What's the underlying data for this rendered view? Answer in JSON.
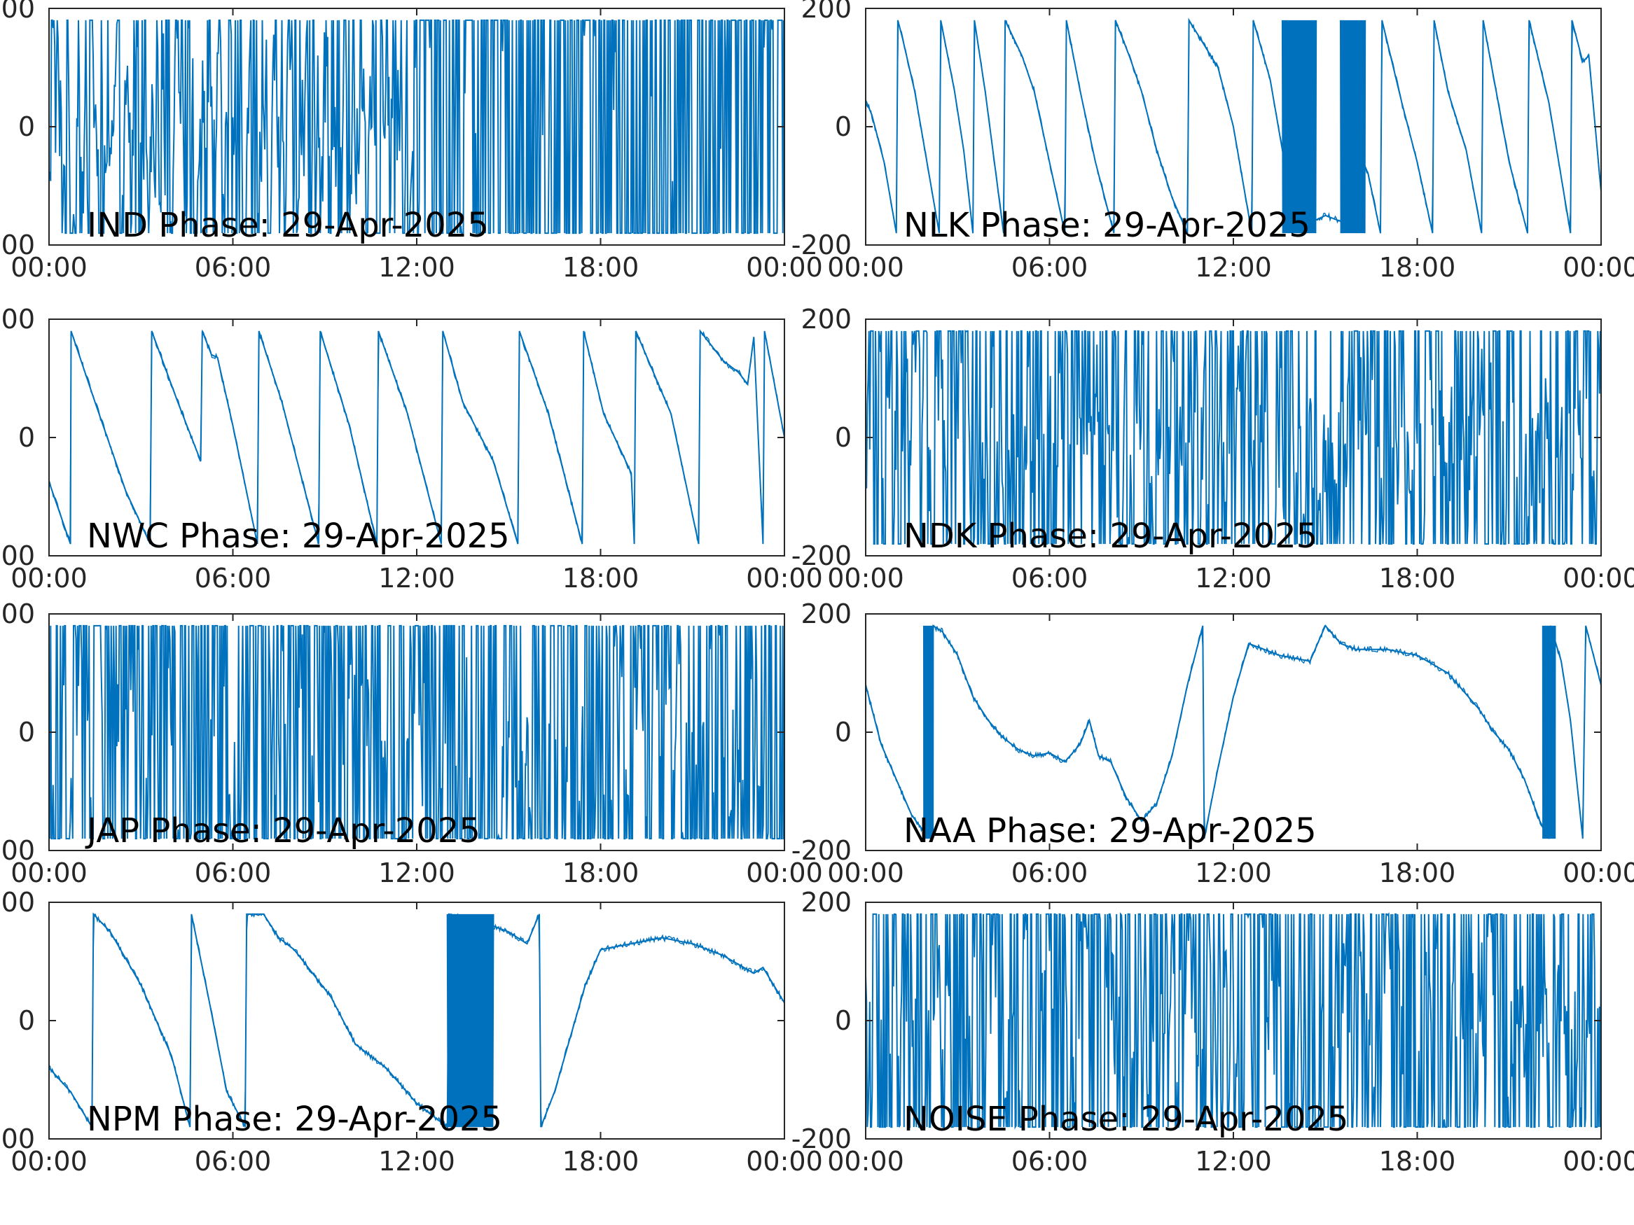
{
  "figure": {
    "color": "#0072BD",
    "xtick_labels": [
      "00:00",
      "06:00",
      "12:00",
      "18:00",
      "00:00"
    ],
    "xlim_hours": [
      0,
      24
    ],
    "xtick_hours": [
      0,
      6,
      12,
      18,
      24
    ],
    "ylim": [
      -200,
      200
    ],
    "ytick_values": [
      -200,
      0,
      200
    ]
  },
  "chart_data": [
    {
      "type": "line",
      "title": "IND Phase: 29-Apr-2025",
      "kind": "noise",
      "density_first": 0.35,
      "density_second": 0.95,
      "split_hour": 12,
      "amp": 180,
      "xlabel": "",
      "ylabel": "",
      "xlim": [
        "00:00",
        "24:00"
      ],
      "ylim": [
        -200,
        200
      ],
      "grid": false
    },
    {
      "type": "line",
      "title": "NLK Phase: 29-Apr-2025",
      "kind": "sawtooth",
      "points": [
        [
          0,
          45
        ],
        [
          0.2,
          20
        ],
        [
          0.6,
          -60
        ],
        [
          1.0,
          -180
        ],
        [
          1.05,
          180
        ],
        [
          1.2,
          150
        ],
        [
          1.6,
          60
        ],
        [
          2.0,
          -60
        ],
        [
          2.4,
          -180
        ],
        [
          2.45,
          180
        ],
        [
          2.9,
          60
        ],
        [
          3.2,
          -40
        ],
        [
          3.5,
          -180
        ],
        [
          3.55,
          180
        ],
        [
          3.9,
          60
        ],
        [
          4.2,
          -60
        ],
        [
          4.5,
          -180
        ],
        [
          4.55,
          180
        ],
        [
          5.1,
          120
        ],
        [
          5.5,
          60
        ],
        [
          6.0,
          -60
        ],
        [
          6.5,
          -180
        ],
        [
          6.55,
          180
        ],
        [
          7.0,
          60
        ],
        [
          7.5,
          -60
        ],
        [
          8.0,
          -160
        ],
        [
          8.1,
          -180
        ],
        [
          8.15,
          180
        ],
        [
          8.6,
          120
        ],
        [
          9.0,
          60
        ],
        [
          9.5,
          -40
        ],
        [
          10.0,
          -120
        ],
        [
          10.5,
          -180
        ],
        [
          10.55,
          180
        ],
        [
          11.5,
          100
        ],
        [
          12.0,
          0
        ],
        [
          12.6,
          -180
        ],
        [
          12.65,
          180
        ],
        [
          13.2,
          80
        ],
        [
          13.5,
          -10
        ],
        [
          13.8,
          -100
        ],
        [
          14.2,
          -140
        ],
        [
          14.6,
          -160
        ],
        [
          15.0,
          -150
        ],
        [
          15.5,
          -160
        ],
        [
          16.0,
          -30
        ],
        [
          16.4,
          -80
        ],
        [
          16.8,
          -180
        ],
        [
          16.85,
          180
        ],
        [
          17.5,
          40
        ],
        [
          18.0,
          -60
        ],
        [
          18.5,
          -180
        ],
        [
          18.55,
          180
        ],
        [
          19.0,
          60
        ],
        [
          19.6,
          -40
        ],
        [
          20.1,
          -180
        ],
        [
          20.15,
          180
        ],
        [
          21.0,
          -60
        ],
        [
          21.6,
          -180
        ],
        [
          21.65,
          180
        ],
        [
          22.3,
          40
        ],
        [
          23.0,
          -180
        ],
        [
          23.05,
          180
        ],
        [
          23.4,
          110
        ],
        [
          23.6,
          120
        ],
        [
          24,
          -110
        ]
      ],
      "burst": [
        [
          13.6,
          14.7
        ],
        [
          15.5,
          16.3
        ]
      ],
      "xlabel": "",
      "ylabel": "",
      "ylim": [
        -200,
        200
      ],
      "grid": false
    },
    {
      "type": "line",
      "title": "NWC Phase: 29-Apr-2025",
      "kind": "sawtooth",
      "points": [
        [
          0,
          -75
        ],
        [
          0.7,
          -180
        ],
        [
          0.72,
          180
        ],
        [
          1.5,
          60
        ],
        [
          2.5,
          -90
        ],
        [
          3.3,
          -180
        ],
        [
          3.35,
          180
        ],
        [
          4.2,
          60
        ],
        [
          4.95,
          -40
        ],
        [
          5.0,
          180
        ],
        [
          5.3,
          140
        ],
        [
          5.5,
          135
        ],
        [
          6.0,
          20
        ],
        [
          6.8,
          -180
        ],
        [
          6.85,
          180
        ],
        [
          7.6,
          60
        ],
        [
          8.0,
          -20
        ],
        [
          8.8,
          -180
        ],
        [
          8.85,
          180
        ],
        [
          9.8,
          20
        ],
        [
          10.7,
          -180
        ],
        [
          10.75,
          180
        ],
        [
          11.7,
          40
        ],
        [
          12.8,
          -180
        ],
        [
          12.85,
          180
        ],
        [
          13.5,
          60
        ],
        [
          14.5,
          -40
        ],
        [
          15.3,
          -180
        ],
        [
          15.35,
          180
        ],
        [
          16.3,
          40
        ],
        [
          17.4,
          -180
        ],
        [
          17.45,
          180
        ],
        [
          18.1,
          40
        ],
        [
          19.0,
          -60
        ],
        [
          19.1,
          -180
        ],
        [
          19.15,
          180
        ],
        [
          20.3,
          40
        ],
        [
          21.2,
          -180
        ],
        [
          21.25,
          180
        ],
        [
          22.0,
          130
        ],
        [
          22.5,
          110
        ],
        [
          22.8,
          90
        ],
        [
          23.0,
          170
        ],
        [
          23.3,
          -180
        ],
        [
          23.35,
          180
        ],
        [
          24,
          0
        ]
      ],
      "xlabel": "",
      "ylabel": "",
      "ylim": [
        -200,
        200
      ],
      "grid": false
    },
    {
      "type": "line",
      "title": "NDK Phase: 29-Apr-2025",
      "kind": "noise",
      "density_first": 0.55,
      "density_second": 0.55,
      "split_hour": 12,
      "amp": 180,
      "xlabel": "",
      "ylabel": "",
      "ylim": [
        -200,
        200
      ],
      "grid": false
    },
    {
      "type": "line",
      "title": "JAP Phase: 29-Apr-2025",
      "kind": "noise",
      "density_first": 0.7,
      "density_second": 0.7,
      "split_hour": 12,
      "amp": 180,
      "xlabel": "",
      "ylabel": "",
      "ylim": [
        -200,
        200
      ],
      "grid": false
    },
    {
      "type": "line",
      "title": "NAA Phase: 29-Apr-2025",
      "kind": "trend",
      "points": [
        [
          0,
          80
        ],
        [
          0.5,
          -20
        ],
        [
          1.0,
          -80
        ],
        [
          1.5,
          -140
        ],
        [
          2.0,
          -175
        ],
        [
          2.2,
          180
        ],
        [
          2.5,
          170
        ],
        [
          3.0,
          130
        ],
        [
          3.5,
          60
        ],
        [
          4.0,
          20
        ],
        [
          4.5,
          -10
        ],
        [
          5.0,
          -30
        ],
        [
          5.5,
          -40
        ],
        [
          6.0,
          -35
        ],
        [
          6.5,
          -50
        ],
        [
          7.0,
          -20
        ],
        [
          7.3,
          20
        ],
        [
          7.6,
          -40
        ],
        [
          8.0,
          -50
        ],
        [
          8.5,
          -110
        ],
        [
          9.0,
          -150
        ],
        [
          9.5,
          -120
        ],
        [
          10.0,
          -40
        ],
        [
          10.5,
          80
        ],
        [
          11.0,
          180
        ],
        [
          11.05,
          -180
        ],
        [
          11.5,
          -60
        ],
        [
          12.0,
          60
        ],
        [
          12.5,
          150
        ],
        [
          13.0,
          140
        ],
        [
          13.5,
          130
        ],
        [
          14.0,
          125
        ],
        [
          14.5,
          120
        ],
        [
          15.0,
          180
        ],
        [
          15.5,
          150
        ],
        [
          16.0,
          140
        ],
        [
          17.0,
          140
        ],
        [
          18.0,
          130
        ],
        [
          19.0,
          100
        ],
        [
          20.0,
          40
        ],
        [
          20.5,
          0
        ],
        [
          21.0,
          -30
        ],
        [
          21.5,
          -80
        ],
        [
          22.0,
          -150
        ],
        [
          22.3,
          -180
        ],
        [
          22.35,
          180
        ],
        [
          22.7,
          120
        ],
        [
          23.0,
          20
        ],
        [
          23.4,
          -180
        ],
        [
          23.5,
          180
        ],
        [
          24,
          80
        ]
      ],
      "burst": [
        [
          1.9,
          2.2
        ],
        [
          22.1,
          22.5
        ]
      ],
      "xlabel": "",
      "ylabel": "",
      "ylim": [
        -200,
        200
      ],
      "grid": false
    },
    {
      "type": "line",
      "title": "NPM Phase: 29-Apr-2025",
      "kind": "trend",
      "points": [
        [
          0,
          -80
        ],
        [
          0.7,
          -120
        ],
        [
          1.4,
          -180
        ],
        [
          1.45,
          180
        ],
        [
          2.0,
          150
        ],
        [
          3.0,
          60
        ],
        [
          4.0,
          -60
        ],
        [
          4.5,
          -160
        ],
        [
          4.6,
          -180
        ],
        [
          4.65,
          180
        ],
        [
          5.2,
          40
        ],
        [
          5.8,
          -120
        ],
        [
          6.4,
          -180
        ],
        [
          6.45,
          180
        ],
        [
          7.0,
          180
        ],
        [
          7.5,
          140
        ],
        [
          8.0,
          120
        ],
        [
          8.6,
          80
        ],
        [
          9.2,
          40
        ],
        [
          10.0,
          -40
        ],
        [
          11.0,
          -80
        ],
        [
          12.0,
          -140
        ],
        [
          13.0,
          -180
        ],
        [
          13.05,
          180
        ],
        [
          14.0,
          170
        ],
        [
          15.0,
          150
        ],
        [
          15.6,
          130
        ],
        [
          16.0,
          180
        ],
        [
          16.05,
          -180
        ],
        [
          16.5,
          -120
        ],
        [
          17.0,
          -30
        ],
        [
          17.5,
          60
        ],
        [
          18.0,
          120
        ],
        [
          19.0,
          130
        ],
        [
          20.0,
          140
        ],
        [
          21.0,
          130
        ],
        [
          22.0,
          110
        ],
        [
          23.0,
          80
        ],
        [
          23.3,
          90
        ],
        [
          24,
          30
        ]
      ],
      "burst": [
        [
          13.0,
          14.5
        ]
      ],
      "xlabel": "",
      "ylabel": "",
      "ylim": [
        -200,
        200
      ],
      "grid": false
    },
    {
      "type": "line",
      "title": "NOISE Phase: 29-Apr-2025",
      "kind": "noise",
      "density_first": 0.6,
      "density_second": 0.6,
      "split_hour": 12,
      "amp": 180,
      "xlabel": "",
      "ylabel": "",
      "ylim": [
        -200,
        200
      ],
      "grid": false
    }
  ]
}
